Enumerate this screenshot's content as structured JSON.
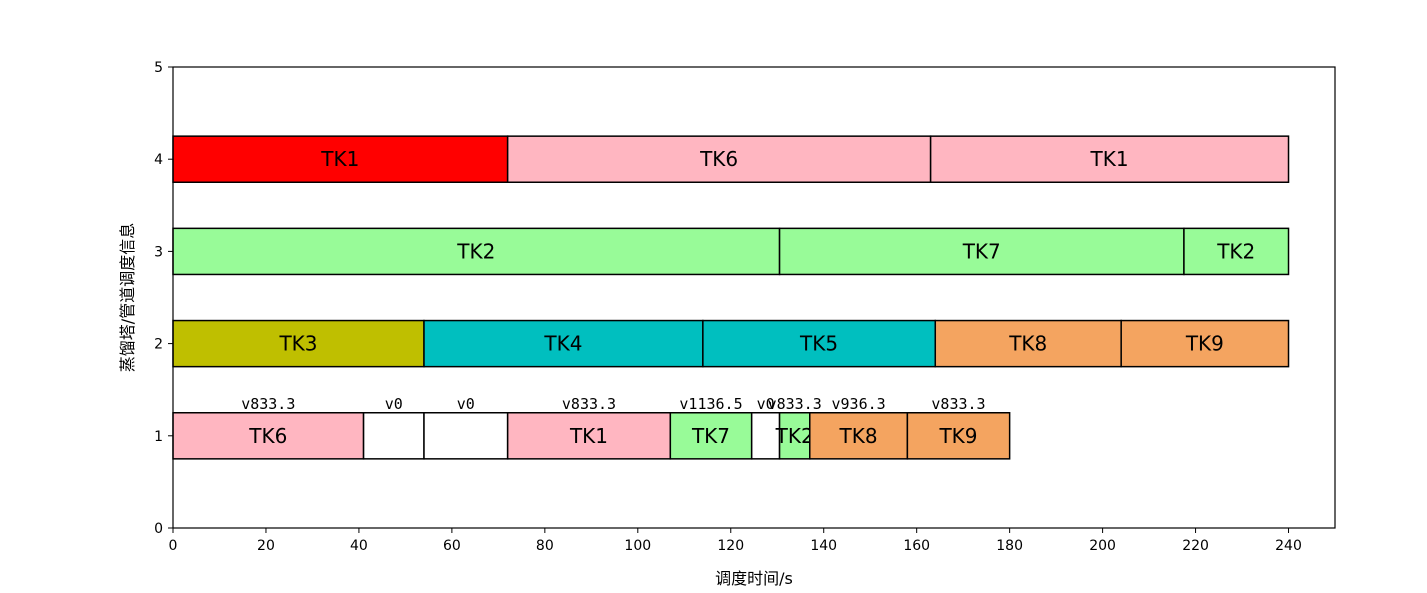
{
  "chart_data": {
    "type": "gantt",
    "title": "",
    "xlabel": "调度时间/s",
    "ylabel": "蒸馏塔/管道调度信息",
    "xlim": [
      0,
      250
    ],
    "ylim": [
      0,
      5
    ],
    "xticks": [
      0,
      20,
      40,
      60,
      80,
      100,
      120,
      140,
      160,
      180,
      200,
      220,
      240
    ],
    "yticks": [
      0,
      1,
      2,
      3,
      4,
      5
    ],
    "grid": false,
    "legend": "none",
    "rows": [
      {
        "y": 4,
        "segments": [
          {
            "start": 0,
            "end": 72,
            "label": "TK1",
            "color": "#ff0000"
          },
          {
            "start": 72,
            "end": 163,
            "label": "TK6",
            "color": "#ffb6c1"
          },
          {
            "start": 163,
            "end": 240,
            "label": "TK1",
            "color": "#ffb6c1"
          }
        ]
      },
      {
        "y": 3,
        "segments": [
          {
            "start": 0,
            "end": 130.5,
            "label": "TK2",
            "color": "#98fb98"
          },
          {
            "start": 130.5,
            "end": 217.5,
            "label": "TK7",
            "color": "#98fb98"
          },
          {
            "start": 217.5,
            "end": 240,
            "label": "TK2",
            "color": "#98fb98"
          }
        ]
      },
      {
        "y": 2,
        "segments": [
          {
            "start": 0,
            "end": 54,
            "label": "TK3",
            "color": "#bfbf00"
          },
          {
            "start": 54,
            "end": 114,
            "label": "TK4",
            "color": "#00bfbf"
          },
          {
            "start": 114,
            "end": 164,
            "label": "TK5",
            "color": "#00bfbf"
          },
          {
            "start": 164,
            "end": 204,
            "label": "TK8",
            "color": "#f4a460"
          },
          {
            "start": 204,
            "end": 240,
            "label": "TK9",
            "color": "#f4a460"
          }
        ]
      },
      {
        "y": 1,
        "segments": [
          {
            "start": 0,
            "end": 41,
            "label": "TK6",
            "color": "#ffb6c1",
            "speed": "v833.3"
          },
          {
            "start": 41,
            "end": 54,
            "label": "",
            "color": "#ffffff",
            "speed": "v0"
          },
          {
            "start": 54,
            "end": 72,
            "label": "",
            "color": "#ffffff",
            "speed": "v0"
          },
          {
            "start": 72,
            "end": 107,
            "label": "TK1",
            "color": "#ffb6c1",
            "speed": "v833.3"
          },
          {
            "start": 107,
            "end": 124.5,
            "label": "TK7",
            "color": "#98fb98",
            "speed": "v1136.5"
          },
          {
            "start": 124.5,
            "end": 130.5,
            "label": "",
            "color": "#ffffff",
            "speed": "v0"
          },
          {
            "start": 130.5,
            "end": 137,
            "label": "TK2",
            "color": "#98fb98",
            "speed": "v833.3"
          },
          {
            "start": 137,
            "end": 158,
            "label": "TK8",
            "color": "#f4a460",
            "speed": "v936.3"
          },
          {
            "start": 158,
            "end": 180,
            "label": "TK9",
            "color": "#f4a460",
            "speed": "v833.3"
          }
        ]
      }
    ]
  }
}
